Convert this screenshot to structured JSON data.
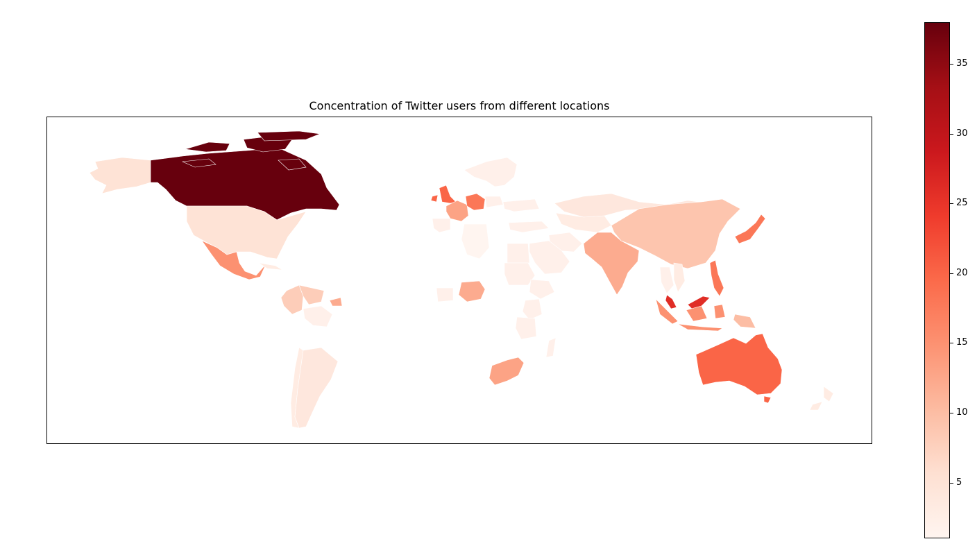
{
  "title": "Concentration of Twitter users from different locations",
  "colorbar": {
    "min": 1,
    "max": 38,
    "ticks": [
      5,
      10,
      15,
      20,
      25,
      30,
      35
    ],
    "colormap": "Reds",
    "colors": [
      "#fff5f0",
      "#fee0d2",
      "#fcbba1",
      "#fc9272",
      "#fb6a4a",
      "#ef3b2c",
      "#cb181d",
      "#a50f15",
      "#67000d"
    ]
  },
  "regions": [
    {
      "name": "Canada",
      "value": 38
    },
    {
      "name": "Malaysia",
      "value": 26
    },
    {
      "name": "Australia",
      "value": 20
    },
    {
      "name": "United Kingdom",
      "value": 20
    },
    {
      "name": "Germany",
      "value": 18
    },
    {
      "name": "Japan",
      "value": 18
    },
    {
      "name": "Philippines",
      "value": 18
    },
    {
      "name": "Mexico",
      "value": 15
    },
    {
      "name": "Indonesia",
      "value": 15
    },
    {
      "name": "South Africa",
      "value": 13
    },
    {
      "name": "France",
      "value": 13
    },
    {
      "name": "India",
      "value": 12
    },
    {
      "name": "Nigeria",
      "value": 12
    },
    {
      "name": "China",
      "value": 9
    },
    {
      "name": "Colombia",
      "value": 8
    },
    {
      "name": "Venezuela",
      "value": 8
    },
    {
      "name": "United States",
      "value": 5
    },
    {
      "name": "Alaska",
      "value": 5
    },
    {
      "name": "Russia",
      "value": 4
    },
    {
      "name": "Argentina",
      "value": 4
    },
    {
      "name": "Kazakhstan",
      "value": 3
    },
    {
      "name": "Saudi Arabia",
      "value": 2
    },
    {
      "name": "Egypt",
      "value": 2
    },
    {
      "name": "Sudan",
      "value": 2
    },
    {
      "name": "Kenya",
      "value": 2
    },
    {
      "name": "Scandinavia",
      "value": 2
    },
    {
      "name": "Spain",
      "value": 2
    },
    {
      "name": "Turkey",
      "value": 2
    },
    {
      "name": "Poland",
      "value": 2
    },
    {
      "name": "Ukraine",
      "value": 2
    },
    {
      "name": "Chile",
      "value": 3
    },
    {
      "name": "Brazil-east",
      "value": 2
    },
    {
      "name": "Iran",
      "value": 2
    },
    {
      "name": "New Zealand",
      "value": 3
    },
    {
      "name": "Thailand",
      "value": 2
    },
    {
      "name": "Vietnam",
      "value": 3
    },
    {
      "name": "Algeria",
      "value": 1
    },
    {
      "name": "Ethiopia",
      "value": 2
    },
    {
      "name": "Tanzania",
      "value": 2
    },
    {
      "name": "Madagascar",
      "value": 2
    },
    {
      "name": "Papua New Guinea",
      "value": 10
    },
    {
      "name": "Cuba",
      "value": 3
    },
    {
      "name": "Guyana",
      "value": 12
    },
    {
      "name": "Ghana",
      "value": 2
    }
  ]
}
